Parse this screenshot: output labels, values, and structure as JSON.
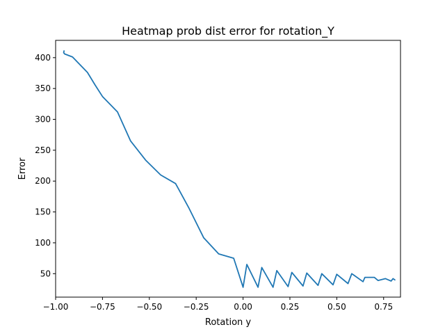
{
  "chart_data": {
    "type": "line",
    "title": "Heatmap prob dist error for rotation_Y",
    "xlabel": "Rotation y",
    "ylabel": "Error",
    "xlim": [
      -1.0,
      0.84
    ],
    "ylim": [
      12,
      428
    ],
    "grid": false,
    "legend": false,
    "xticks": [
      -1.0,
      -0.75,
      -0.5,
      -0.25,
      0.0,
      0.25,
      0.5,
      0.75
    ],
    "xtick_labels": [
      "−1.00",
      "−0.75",
      "−0.50",
      "−0.25",
      "0.00",
      "0.25",
      "0.50",
      "0.75"
    ],
    "yticks": [
      50,
      100,
      150,
      200,
      250,
      300,
      350,
      400
    ],
    "ytick_labels": [
      "50",
      "100",
      "150",
      "200",
      "250",
      "300",
      "350",
      "400"
    ],
    "series": [
      {
        "color": "#1f77b4",
        "x": [
          -0.955,
          -0.957,
          -0.952,
          -0.91,
          -0.83,
          -0.79,
          -0.75,
          -0.67,
          -0.6,
          -0.52,
          -0.44,
          -0.36,
          -0.29,
          -0.21,
          -0.13,
          -0.05,
          0.0,
          0.02,
          0.08,
          0.1,
          0.16,
          0.18,
          0.24,
          0.26,
          0.32,
          0.34,
          0.4,
          0.42,
          0.48,
          0.5,
          0.56,
          0.58,
          0.64,
          0.65,
          0.7,
          0.72,
          0.76,
          0.79,
          0.8,
          0.81
        ],
        "y": [
          411,
          408,
          406,
          401,
          376,
          356,
          337,
          312,
          265,
          234,
          210,
          196,
          157,
          108,
          82,
          75,
          28,
          65,
          28,
          60,
          28,
          55,
          29,
          52,
          30,
          51,
          31,
          50,
          32,
          49,
          34,
          50,
          37,
          44,
          44,
          39,
          42,
          38,
          42,
          40
        ]
      }
    ]
  }
}
